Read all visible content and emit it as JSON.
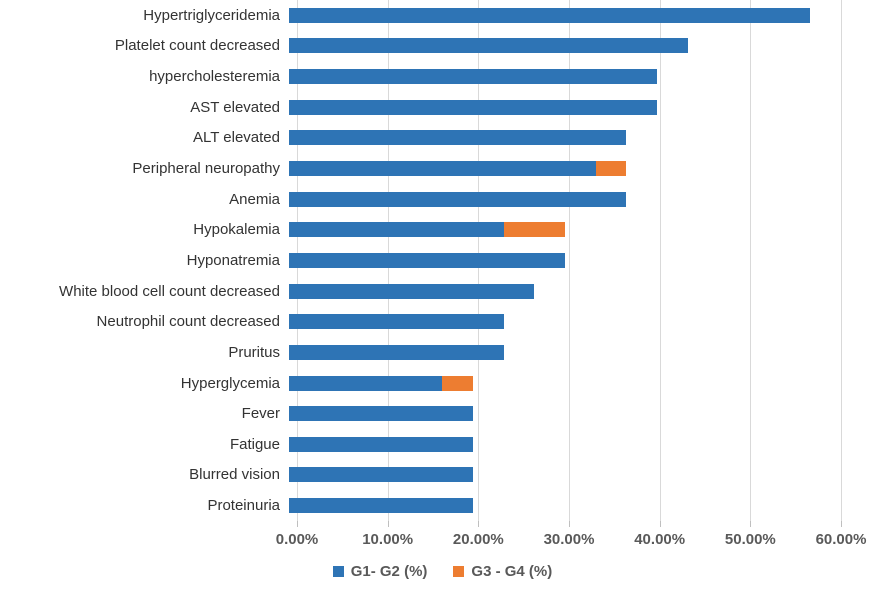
{
  "chart_data": {
    "type": "bar",
    "orientation": "horizontal",
    "stacked": true,
    "categories": [
      "Hypertriglyceridemia",
      "Platelet count decreased",
      "hypercholesteremia",
      "AST elevated",
      "ALT elevated",
      "Peripheral neuropathy",
      "Anemia",
      "Hypokalemia",
      "Hyponatremia",
      "White blood cell count decreased",
      "Neutrophil count decreased",
      "Pruritus",
      "Hyperglycemia",
      "Fever",
      "Fatigue",
      "Blurred vision",
      "Proteinuria"
    ],
    "series": [
      {
        "name": "G1- G2 (%)",
        "color": "#2e74b5",
        "values": [
          56.67,
          43.33,
          40,
          40,
          36.67,
          33.33,
          36.67,
          23.33,
          30,
          26.67,
          23.33,
          23.33,
          16.67,
          20,
          20,
          20,
          20
        ]
      },
      {
        "name": "G3 - G4 (%)",
        "color": "#ed7d31",
        "values": [
          0,
          0,
          0,
          0,
          0,
          3.33,
          0,
          6.67,
          0,
          0,
          0,
          0,
          3.33,
          0,
          0,
          0,
          0
        ]
      }
    ],
    "xlim": [
      0,
      60
    ],
    "x_tick_labels": [
      "0.00%",
      "10.00%",
      "20.00%",
      "30.00%",
      "40.00%",
      "50.00%",
      "60.00%"
    ],
    "grid": "vertical",
    "gridline_color": "#d9d9d9",
    "legend_position": "bottom",
    "xlabel": "",
    "ylabel": ""
  }
}
